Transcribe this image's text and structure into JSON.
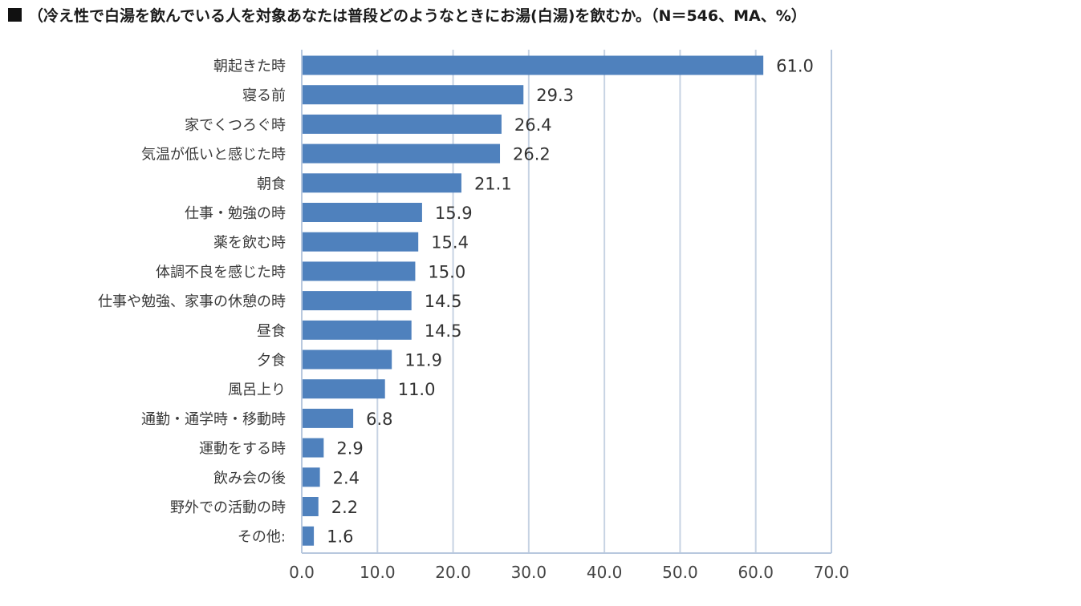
{
  "title": {
    "marker_icon": "black-square-icon",
    "text": "（冷え性で白湯を飲んでいる人を対象あなたは普段どのようなときにお湯(白湯)を飲むか。（N＝546、MA、%）"
  },
  "chart_data": {
    "type": "bar",
    "orientation": "horizontal",
    "categories": [
      "朝起きた時",
      "寝る前",
      "家でくつろぐ時",
      "気温が低いと感じた時",
      "朝食",
      "仕事・勉強の時",
      "薬を飲む時",
      "体調不良を感じた時",
      "仕事や勉強、家事の休憩の時",
      "昼食",
      "夕食",
      "風呂上り",
      "通勤・通学時・移動時",
      "運動をする時",
      "飲み会の後",
      "野外での活動の時",
      "その他:"
    ],
    "values": [
      61.0,
      29.3,
      26.4,
      26.2,
      21.1,
      15.9,
      15.4,
      15.0,
      14.5,
      14.5,
      11.9,
      11.0,
      6.8,
      2.9,
      2.4,
      2.2,
      1.6
    ],
    "value_labels": [
      "61.0",
      "29.3",
      "26.4",
      "26.2",
      "21.1",
      "15.9",
      "15.4",
      "15.0",
      "14.5",
      "14.5",
      "11.9",
      "11.0",
      "6.8",
      "2.9",
      "2.4",
      "2.2",
      "1.6"
    ],
    "xlim": [
      0,
      70
    ],
    "x_ticks": [
      0,
      10,
      20,
      30,
      40,
      50,
      60,
      70
    ],
    "x_tick_labels": [
      "0.0",
      "10.0",
      "20.0",
      "30.0",
      "40.0",
      "50.0",
      "60.0",
      "70.0"
    ],
    "grid": true,
    "bar_color": "#4f81bd",
    "grid_color": "#c7d3e3"
  }
}
